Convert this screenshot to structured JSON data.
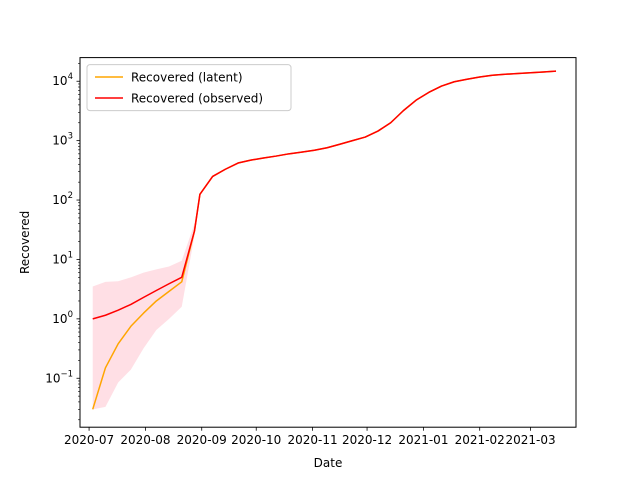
{
  "chart_data": {
    "type": "line",
    "xlabel": "Date",
    "ylabel": "Recovered",
    "yscale": "log",
    "ylim": [
      0.015,
      25000
    ],
    "xlim": [
      "2020-06-26",
      "2021-03-26"
    ],
    "grid": false,
    "legend_position": "top-left",
    "x_ticks": [
      "2020-07-01",
      "2020-08-01",
      "2020-09-01",
      "2020-10-01",
      "2020-11-01",
      "2020-12-01",
      "2021-01-01",
      "2021-02-01",
      "2021-03-01"
    ],
    "x_tick_labels": [
      "2020-07",
      "2020-08",
      "2020-09",
      "2020-10",
      "2020-11",
      "2020-12",
      "2021-01",
      "2021-02",
      "2021-03"
    ],
    "y_ticks": [
      0.1,
      1,
      10,
      100,
      1000,
      10000
    ],
    "y_tick_labels": [
      {
        "base": "10",
        "exp": "−1"
      },
      {
        "base": "10",
        "exp": "0"
      },
      {
        "base": "10",
        "exp": "1"
      },
      {
        "base": "10",
        "exp": "2"
      },
      {
        "base": "10",
        "exp": "3"
      },
      {
        "base": "10",
        "exp": "4"
      }
    ],
    "series": [
      {
        "name": "Recovered (latent)",
        "color": "#ffa500",
        "x": [
          "2020-07-03",
          "2020-07-10",
          "2020-07-17",
          "2020-07-24",
          "2020-07-31",
          "2020-08-07",
          "2020-08-14",
          "2020-08-21",
          "2020-08-28",
          "2020-08-31",
          "2020-09-07",
          "2020-09-14",
          "2020-09-21",
          "2020-09-28",
          "2020-10-05",
          "2020-10-12",
          "2020-10-19",
          "2020-10-26",
          "2020-11-02",
          "2020-11-09",
          "2020-11-16",
          "2020-11-23",
          "2020-11-30",
          "2020-12-07",
          "2020-12-14",
          "2020-12-21",
          "2020-12-28",
          "2021-01-04",
          "2021-01-11",
          "2021-01-18",
          "2021-01-25",
          "2021-02-01",
          "2021-02-08",
          "2021-02-15",
          "2021-02-22",
          "2021-03-01",
          "2021-03-08",
          "2021-03-15"
        ],
        "values": [
          0.03,
          0.15,
          0.38,
          0.75,
          1.25,
          2.0,
          2.9,
          4.2,
          30,
          125,
          250,
          330,
          420,
          470,
          510,
          550,
          600,
          640,
          690,
          760,
          870,
          1000,
          1150,
          1450,
          2000,
          3200,
          4800,
          6500,
          8300,
          9800,
          10800,
          11800,
          12600,
          13100,
          13500,
          13900,
          14300,
          14800
        ]
      },
      {
        "name": "Recovered (observed)",
        "color": "#ff0000",
        "x": [
          "2020-07-03",
          "2020-07-10",
          "2020-07-17",
          "2020-07-24",
          "2020-07-31",
          "2020-08-07",
          "2020-08-14",
          "2020-08-21",
          "2020-08-28",
          "2020-08-31",
          "2020-09-07",
          "2020-09-14",
          "2020-09-21",
          "2020-09-28",
          "2020-10-05",
          "2020-10-12",
          "2020-10-19",
          "2020-10-26",
          "2020-11-02",
          "2020-11-09",
          "2020-11-16",
          "2020-11-23",
          "2020-11-30",
          "2020-12-07",
          "2020-12-14",
          "2020-12-21",
          "2020-12-28",
          "2021-01-04",
          "2021-01-11",
          "2021-01-18",
          "2021-01-25",
          "2021-02-01",
          "2021-02-08",
          "2021-02-15",
          "2021-02-22",
          "2021-03-01",
          "2021-03-08",
          "2021-03-15"
        ],
        "values": [
          1.0,
          1.15,
          1.4,
          1.75,
          2.3,
          3.0,
          3.9,
          5.0,
          30,
          125,
          250,
          330,
          420,
          470,
          510,
          550,
          600,
          640,
          690,
          760,
          870,
          1000,
          1150,
          1450,
          2000,
          3200,
          4800,
          6500,
          8300,
          9800,
          10800,
          11800,
          12600,
          13100,
          13500,
          13900,
          14300,
          14800
        ]
      }
    ],
    "band": {
      "color": "#ffc0cb",
      "x": [
        "2020-07-03",
        "2020-07-10",
        "2020-07-17",
        "2020-07-24",
        "2020-07-31",
        "2020-08-07",
        "2020-08-14",
        "2020-08-21",
        "2020-08-28",
        "2020-08-31"
      ],
      "lower": [
        0.03,
        0.033,
        0.085,
        0.14,
        0.32,
        0.65,
        1.0,
        1.6,
        25,
        120
      ],
      "upper": [
        3.5,
        4.2,
        4.3,
        5.0,
        6.0,
        6.8,
        7.6,
        9.5,
        40,
        130
      ]
    }
  }
}
